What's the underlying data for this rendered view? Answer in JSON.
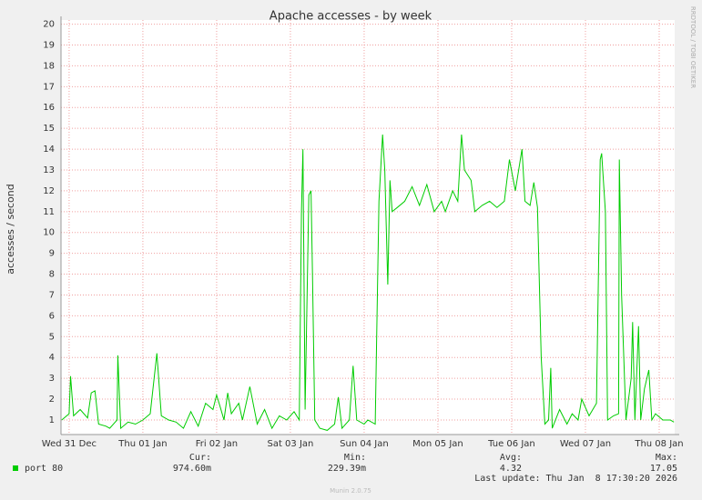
{
  "chart_data": {
    "type": "line",
    "title": "Apache accesses - by week",
    "y_label": "accesses / second",
    "watermark": "RRDTOOL / TOBI OETIKER",
    "x": [
      -0.1,
      0.0,
      0.02,
      0.06,
      0.15,
      0.25,
      0.3,
      0.35,
      0.4,
      0.5,
      0.55,
      0.65,
      0.66,
      0.7,
      0.8,
      0.9,
      1.0,
      1.1,
      1.19,
      1.25,
      1.35,
      1.45,
      1.55,
      1.65,
      1.75,
      1.85,
      1.95,
      2.0,
      2.05,
      2.1,
      2.15,
      2.2,
      2.3,
      2.35,
      2.45,
      2.55,
      2.65,
      2.75,
      2.85,
      2.95,
      3.05,
      3.12,
      3.15,
      3.17,
      3.2,
      3.25,
      3.28,
      3.3,
      3.33,
      3.4,
      3.5,
      3.6,
      3.65,
      3.7,
      3.8,
      3.85,
      3.9,
      4.0,
      4.05,
      4.15,
      4.2,
      4.25,
      4.28,
      4.32,
      4.35,
      4.38,
      4.45,
      4.55,
      4.65,
      4.75,
      4.85,
      4.95,
      5.05,
      5.1,
      5.2,
      5.27,
      5.32,
      5.36,
      5.45,
      5.5,
      5.6,
      5.7,
      5.8,
      5.9,
      5.97,
      6.05,
      6.14,
      6.18,
      6.25,
      6.3,
      6.35,
      6.4,
      6.45,
      6.5,
      6.53,
      6.55,
      6.65,
      6.75,
      6.82,
      6.9,
      6.95,
      7.05,
      7.15,
      7.2,
      7.22,
      7.27,
      7.3,
      7.38,
      7.45,
      7.46,
      7.49,
      7.55,
      7.62,
      7.64,
      7.67,
      7.72,
      7.75,
      7.8,
      7.86,
      7.9,
      7.95,
      8.05,
      8.15,
      8.2
    ],
    "series": [
      {
        "name": "port 80",
        "color": "#00cc00",
        "values": [
          1.0,
          1.3,
          3.1,
          1.2,
          1.5,
          1.1,
          2.3,
          2.4,
          0.8,
          0.7,
          0.6,
          1.0,
          4.1,
          0.6,
          0.9,
          0.8,
          1.0,
          1.3,
          4.2,
          1.2,
          1.0,
          0.9,
          0.6,
          1.4,
          0.7,
          1.8,
          1.5,
          2.2,
          1.6,
          1.0,
          2.3,
          1.3,
          1.8,
          1.0,
          2.6,
          0.8,
          1.5,
          0.6,
          1.2,
          1.0,
          1.4,
          1.0,
          11.0,
          14.0,
          1.5,
          11.8,
          12.0,
          8.0,
          1.0,
          0.6,
          0.5,
          0.8,
          2.1,
          0.6,
          1.0,
          3.6,
          1.0,
          0.8,
          1.0,
          0.8,
          11.5,
          14.7,
          13.0,
          7.5,
          12.5,
          11.0,
          11.2,
          11.5,
          12.2,
          11.3,
          12.3,
          11.0,
          11.5,
          11.0,
          12.0,
          11.5,
          14.7,
          13.0,
          12.5,
          11.0,
          11.3,
          11.5,
          11.2,
          11.5,
          13.5,
          12.0,
          14.0,
          11.5,
          11.3,
          12.4,
          11.2,
          4.0,
          0.8,
          1.0,
          3.5,
          0.6,
          1.5,
          0.8,
          1.3,
          1.0,
          2.0,
          1.2,
          1.8,
          13.5,
          13.8,
          11.0,
          1.0,
          1.2,
          1.3,
          13.5,
          7.0,
          1.0,
          3.0,
          5.7,
          1.0,
          5.5,
          1.0,
          2.5,
          3.4,
          1.0,
          1.3,
          1.0,
          1.0,
          0.9
        ]
      }
    ],
    "xlim": [
      -0.11,
      8.21
    ],
    "xticks": [
      {
        "value": 0,
        "label": "Wed 31 Dec"
      },
      {
        "value": 1,
        "label": "Thu 01 Jan"
      },
      {
        "value": 2,
        "label": "Fri 02 Jan"
      },
      {
        "value": 3,
        "label": "Sat 03 Jan"
      },
      {
        "value": 4,
        "label": "Sun 04 Jan"
      },
      {
        "value": 5,
        "label": "Mon 05 Jan"
      },
      {
        "value": 6,
        "label": "Tue 06 Jan"
      },
      {
        "value": 7,
        "label": "Wed 07 Jan"
      },
      {
        "value": 8,
        "label": "Thu 08 Jan"
      }
    ],
    "ylim": [
      0.3,
      20.2
    ],
    "yticks": [
      1,
      2,
      3,
      4,
      5,
      6,
      7,
      8,
      9,
      10,
      11,
      12,
      13,
      14,
      15,
      16,
      17,
      18,
      19,
      20
    ],
    "grid": true,
    "stats": [
      {
        "label": "Cur:",
        "value": "974.60m"
      },
      {
        "label": "Min:",
        "value": "229.39m"
      },
      {
        "label": "Avg:",
        "value": "4.32"
      },
      {
        "label": "Max:",
        "value": "17.05"
      }
    ],
    "last_update": "Last update: Thu Jan  8 17:30:20 2026",
    "footer": "Munin 2.0.75"
  }
}
